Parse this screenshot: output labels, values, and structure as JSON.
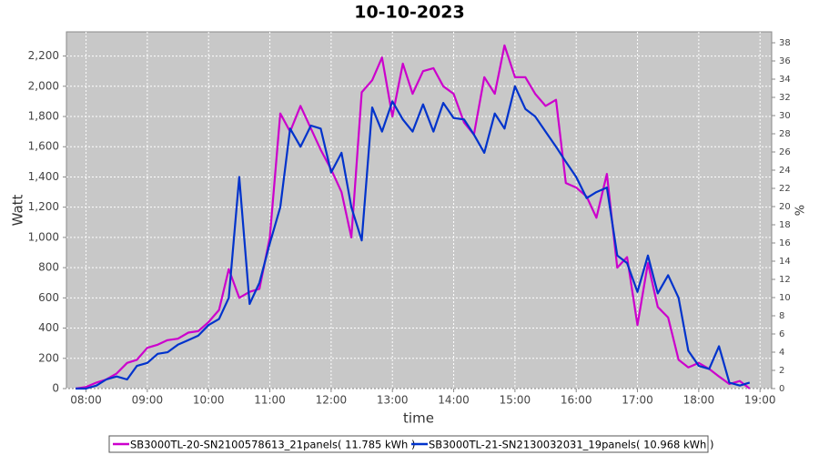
{
  "chart_data": {
    "type": "line",
    "title": "10-10-2023",
    "xlabel": "time",
    "ylabel": "Watt",
    "y2label": "%",
    "x": [
      7.83,
      8,
      8.17,
      8.33,
      8.5,
      8.67,
      8.83,
      9,
      9.17,
      9.33,
      9.5,
      9.67,
      9.83,
      10,
      10.17,
      10.33,
      10.5,
      10.67,
      10.83,
      11,
      11.17,
      11.33,
      11.5,
      11.67,
      11.83,
      12,
      12.17,
      12.33,
      12.5,
      12.67,
      12.83,
      13,
      13.17,
      13.33,
      13.5,
      13.67,
      13.83,
      14,
      14.17,
      14.33,
      14.5,
      14.67,
      14.83,
      15,
      15.17,
      15.33,
      15.5,
      15.67,
      15.83,
      16,
      16.17,
      16.33,
      16.5,
      16.67,
      16.83,
      17,
      17.17,
      17.33,
      17.5,
      17.67,
      17.83,
      18,
      18.17,
      18.33,
      18.5,
      18.67,
      18.83
    ],
    "series": [
      {
        "name": "SB3000TL-20-SN2100578613_21panels( 11.785 kWh )",
        "color": "#cc00cc",
        "values": [
          0,
          10,
          40,
          60,
          100,
          170,
          190,
          270,
          290,
          320,
          330,
          370,
          380,
          440,
          520,
          790,
          600,
          640,
          660,
          1000,
          1820,
          1700,
          1870,
          1720,
          1580,
          1450,
          1300,
          1000,
          1960,
          2040,
          2190,
          1800,
          2150,
          1950,
          2100,
          2120,
          2000,
          1950,
          1760,
          1680,
          2060,
          1950,
          2270,
          2060,
          2060,
          1950,
          1870,
          1910,
          1360,
          1330,
          1270,
          1130,
          1420,
          800,
          870,
          420,
          830,
          540,
          470,
          190,
          140,
          170,
          130,
          80,
          30,
          50,
          0
        ]
      },
      {
        "name": "SB3000TL-21-SN2130032031_19panels( 10.968 kWh )",
        "color": "#0033cc",
        "values": [
          0,
          0,
          20,
          60,
          80,
          60,
          150,
          170,
          230,
          240,
          290,
          320,
          350,
          420,
          460,
          600,
          1400,
          560,
          700,
          960,
          1200,
          1720,
          1600,
          1740,
          1720,
          1430,
          1560,
          1200,
          980,
          1860,
          1700,
          1900,
          1780,
          1700,
          1880,
          1700,
          1890,
          1790,
          1780,
          1680,
          1560,
          1820,
          1720,
          2000,
          1850,
          1800,
          1700,
          1600,
          1500,
          1400,
          1260,
          1300,
          1330,
          880,
          830,
          640,
          880,
          630,
          750,
          600,
          250,
          150,
          130,
          280,
          40,
          20,
          40
        ]
      }
    ],
    "xlim": [
      7.68,
      19.19
    ],
    "xticks": [
      {
        "value": 8,
        "label": "08:00"
      },
      {
        "value": 9,
        "label": "09:00"
      },
      {
        "value": 10,
        "label": "10:00"
      },
      {
        "value": 11,
        "label": "11:00"
      },
      {
        "value": 12,
        "label": "12:00"
      },
      {
        "value": 13,
        "label": "13:00"
      },
      {
        "value": 14,
        "label": "14:00"
      },
      {
        "value": 15,
        "label": "15:00"
      },
      {
        "value": 16,
        "label": "16:00"
      },
      {
        "value": 17,
        "label": "17:00"
      },
      {
        "value": 18,
        "label": "18:00"
      },
      {
        "value": 19,
        "label": "19:00"
      }
    ],
    "ylim": [
      0,
      2360
    ],
    "yticks": [
      0,
      200,
      400,
      600,
      800,
      {
        "value": 1000,
        "label": "1,000"
      },
      {
        "value": 1200,
        "label": "1,200"
      },
      {
        "value": 1400,
        "label": "1,400"
      },
      {
        "value": 1600,
        "label": "1,600"
      },
      {
        "value": 1800,
        "label": "1,800"
      },
      {
        "value": 2000,
        "label": "2,000"
      },
      {
        "value": 2200,
        "label": "2,200"
      }
    ],
    "y2lim": [
      0,
      39.2
    ],
    "y2ticks": [
      0,
      2,
      4,
      6,
      8,
      10,
      12,
      14,
      16,
      18,
      20,
      22,
      24,
      26,
      28,
      30,
      32,
      34,
      36,
      38
    ],
    "grid": true
  }
}
